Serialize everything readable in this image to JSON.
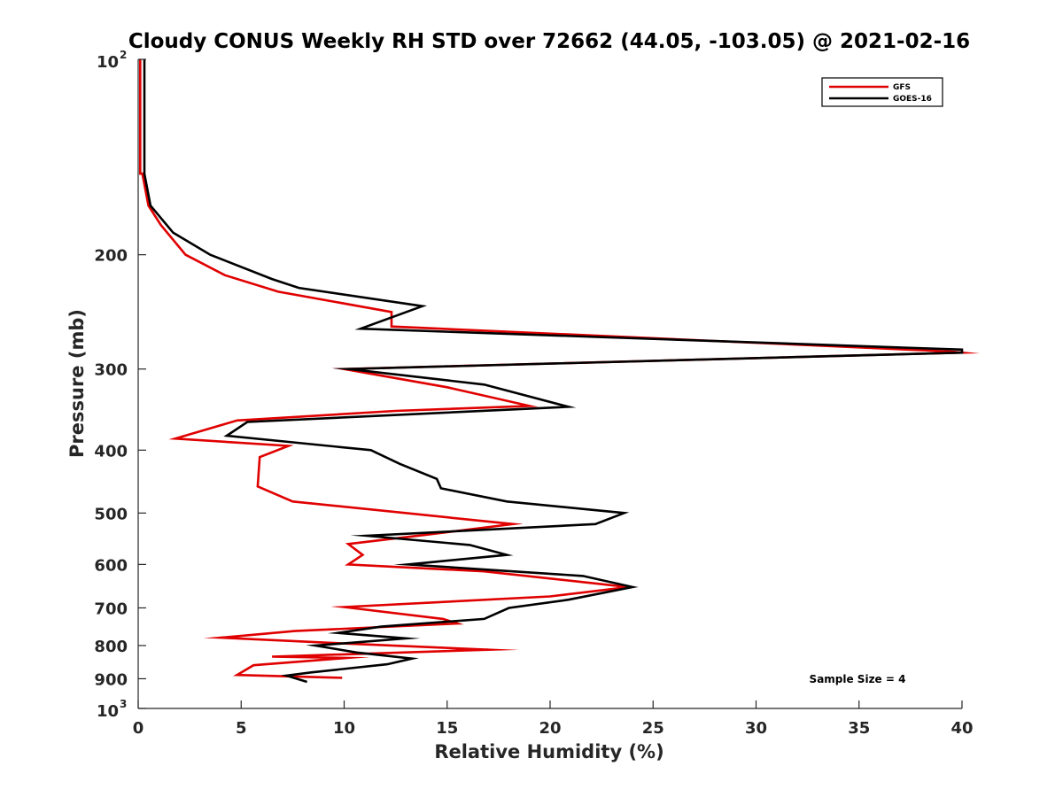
{
  "chart_data": {
    "type": "line",
    "title": "Cloudy CONUS Weekly RH STD over 72662 (44.05, -103.05) @ 2021-02-16",
    "xlabel": "Relative Humidity (%)",
    "ylabel": "Pressure (mb)",
    "xlim": [
      0,
      40
    ],
    "ylim": [
      100,
      1000
    ],
    "yscale": "log",
    "y_reversed": true,
    "grid": false,
    "legend_position": "top-right",
    "xticks": [
      0,
      5,
      10,
      15,
      20,
      25,
      30,
      35,
      40
    ],
    "xtick_labels": [
      "0",
      "5",
      "10",
      "15",
      "20",
      "25",
      "30",
      "35",
      "40"
    ],
    "yticks": [
      {
        "value": 100,
        "base": "10",
        "exp": "2"
      },
      {
        "value": 200,
        "label": "200"
      },
      {
        "value": 300,
        "label": "300"
      },
      {
        "value": 400,
        "label": "400"
      },
      {
        "value": 500,
        "label": "500"
      },
      {
        "value": 600,
        "label": "600"
      },
      {
        "value": 700,
        "label": "700"
      },
      {
        "value": 800,
        "label": "800"
      },
      {
        "value": 900,
        "label": "900"
      },
      {
        "value": 1000,
        "base": "10",
        "exp": "3"
      }
    ],
    "annotation": "Sample Size = 4",
    "series": [
      {
        "name": "GFS",
        "color": "#e00000",
        "points": [
          [
            0.1,
            100
          ],
          [
            0.1,
            150
          ],
          [
            0.2,
            150
          ],
          [
            0.5,
            168
          ],
          [
            1.1,
            180
          ],
          [
            2.3,
            200
          ],
          [
            4.2,
            215
          ],
          [
            6.8,
            228
          ],
          [
            12.3,
            245
          ],
          [
            12.3,
            258
          ],
          [
            39.5,
            282
          ],
          [
            40,
            283
          ],
          [
            10.0,
            300
          ],
          [
            15.0,
            320
          ],
          [
            19.0,
            342
          ],
          [
            12.5,
            348
          ],
          [
            4.8,
            360
          ],
          [
            1.8,
            384
          ],
          [
            7.3,
            394
          ],
          [
            5.9,
            410
          ],
          [
            5.8,
            455
          ],
          [
            7.5,
            480
          ],
          [
            18.2,
            520
          ],
          [
            14.0,
            540
          ],
          [
            10.2,
            558
          ],
          [
            10.9,
            580
          ],
          [
            10.2,
            600
          ],
          [
            16.8,
            615
          ],
          [
            23.8,
            650
          ],
          [
            20.0,
            672
          ],
          [
            10.0,
            698
          ],
          [
            14.8,
            728
          ],
          [
            15.5,
            740
          ],
          [
            7.6,
            760
          ],
          [
            4.0,
            778
          ],
          [
            9.6,
            793
          ],
          [
            17.0,
            812
          ],
          [
            6.5,
            832
          ],
          [
            10.1,
            836
          ],
          [
            5.6,
            858
          ],
          [
            4.8,
            888
          ],
          [
            9.9,
            897
          ]
        ]
      },
      {
        "name": "GOES-16",
        "color": "#000000",
        "points": [
          [
            0.3,
            100
          ],
          [
            0.3,
            150
          ],
          [
            0.6,
            168
          ],
          [
            1.7,
            185
          ],
          [
            3.5,
            200
          ],
          [
            6.5,
            218
          ],
          [
            7.8,
            225
          ],
          [
            13.8,
            240
          ],
          [
            10.8,
            260
          ],
          [
            40,
            280
          ],
          [
            40,
            283
          ],
          [
            10.2,
            300
          ],
          [
            16.8,
            317
          ],
          [
            20.9,
            343
          ],
          [
            5.3,
            362
          ],
          [
            4.3,
            380
          ],
          [
            11.3,
            400
          ],
          [
            12.7,
            420
          ],
          [
            14.5,
            443
          ],
          [
            14.7,
            458
          ],
          [
            17.9,
            480
          ],
          [
            23.6,
            500
          ],
          [
            22.2,
            520
          ],
          [
            11.1,
            542
          ],
          [
            16.1,
            560
          ],
          [
            17.9,
            580
          ],
          [
            13.1,
            600
          ],
          [
            21.6,
            625
          ],
          [
            24.0,
            650
          ],
          [
            20.9,
            680
          ],
          [
            18.0,
            700
          ],
          [
            16.8,
            728
          ],
          [
            11.8,
            748
          ],
          [
            9.7,
            765
          ],
          [
            13.0,
            780
          ],
          [
            8.6,
            800
          ],
          [
            10.6,
            820
          ],
          [
            13.3,
            838
          ],
          [
            12.1,
            855
          ],
          [
            8.4,
            880
          ],
          [
            7.2,
            890
          ],
          [
            8.2,
            910
          ]
        ]
      }
    ]
  }
}
